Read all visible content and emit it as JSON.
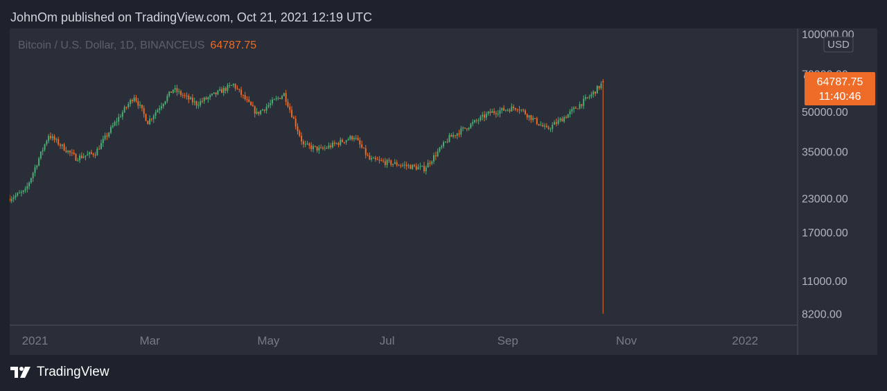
{
  "header": {
    "publish_line": "JohnOm published on TradingView.com, Oct 21, 2021 12:19 UTC"
  },
  "legend": {
    "symbol": "Bitcoin / U.S. Dollar, 1D, BINANCEUS",
    "last_price": "64787.75"
  },
  "price_axis": {
    "currency": "USD",
    "labels": [
      "100000.00",
      "70000.00",
      "50000.00",
      "35000.00",
      "23000.00",
      "17000.00",
      "11000.00",
      "8200.00"
    ]
  },
  "price_tag": {
    "price": "64787.75",
    "countdown": "11:40:46"
  },
  "time_axis": {
    "labels": [
      "2021",
      "Mar",
      "May",
      "Jul",
      "Sep",
      "Nov",
      "2022"
    ]
  },
  "footer": {
    "brand": "TradingView"
  },
  "colors": {
    "background": "#1e222d",
    "pane": "#2a2e39",
    "up": "#4caf76",
    "down": "#ef6c28",
    "axis_text": "#b2b5be"
  },
  "chart_data": {
    "type": "candlestick",
    "series_name": "BTCUSD",
    "y_scale": "log",
    "ylim": [
      7500,
      105000
    ],
    "xlim": [
      "2020-12-19",
      "2022-01-28"
    ],
    "grid": false,
    "legend_position": "top-left",
    "last_price": 64787.75,
    "last_bar_low": 8200,
    "monthly_path": [
      {
        "date": "2020-12-19",
        "close": 23000
      },
      {
        "date": "2020-12-27",
        "close": 24500
      },
      {
        "date": "2021-01-08",
        "close": 40500
      },
      {
        "date": "2021-01-22",
        "close": 33000
      },
      {
        "date": "2021-02-01",
        "close": 34500
      },
      {
        "date": "2021-02-11",
        "close": 45000
      },
      {
        "date": "2021-02-21",
        "close": 57500
      },
      {
        "date": "2021-02-28",
        "close": 45500
      },
      {
        "date": "2021-03-13",
        "close": 61000
      },
      {
        "date": "2021-03-25",
        "close": 53500
      },
      {
        "date": "2021-04-13",
        "close": 63500
      },
      {
        "date": "2021-04-25",
        "close": 49000
      },
      {
        "date": "2021-05-09",
        "close": 58500
      },
      {
        "date": "2021-05-19",
        "close": 37000
      },
      {
        "date": "2021-05-28",
        "close": 35500
      },
      {
        "date": "2021-06-14",
        "close": 40000
      },
      {
        "date": "2021-06-22",
        "close": 32500
      },
      {
        "date": "2021-07-20",
        "close": 30000
      },
      {
        "date": "2021-08-02",
        "close": 39500
      },
      {
        "date": "2021-08-23",
        "close": 49500
      },
      {
        "date": "2021-09-06",
        "close": 52000
      },
      {
        "date": "2021-09-21",
        "close": 42500
      },
      {
        "date": "2021-10-01",
        "close": 48000
      },
      {
        "date": "2021-10-14",
        "close": 58000
      },
      {
        "date": "2021-10-20",
        "close": 64787.75
      }
    ]
  }
}
